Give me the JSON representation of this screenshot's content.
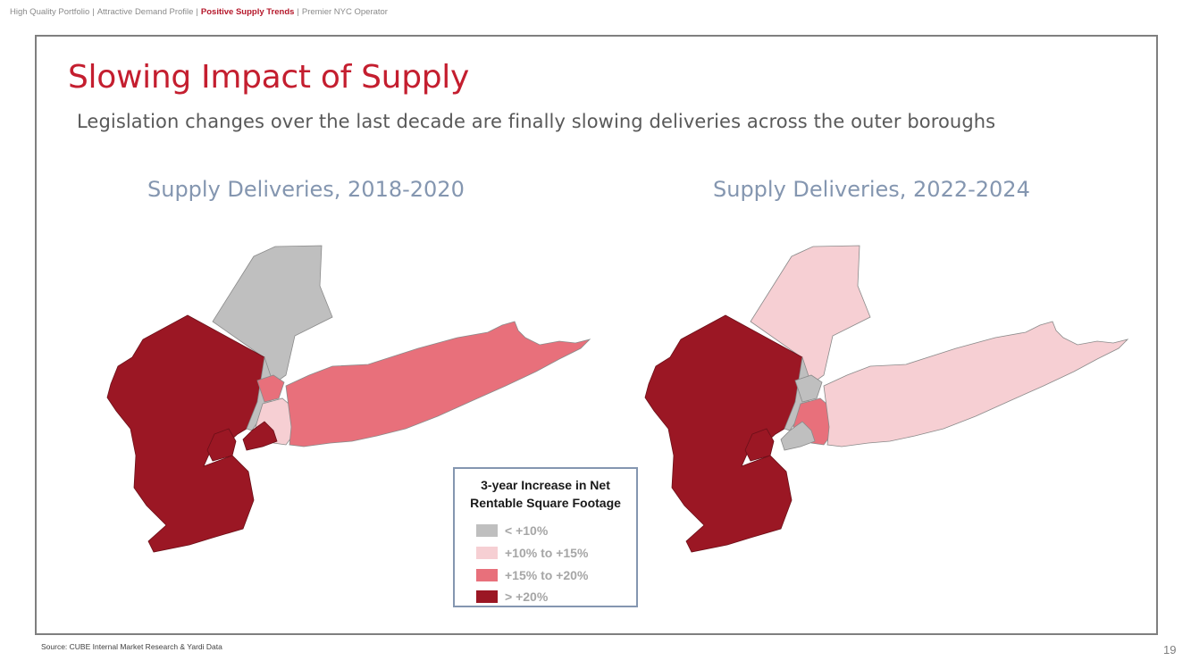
{
  "header": {
    "breadcrumb": [
      {
        "label": "High Quality Portfolio",
        "active": false
      },
      {
        "label": "Attractive Demand Profile",
        "active": false
      },
      {
        "label": "Positive Supply Trends",
        "active": true
      },
      {
        "label": "Premier NYC Operator",
        "active": false
      }
    ],
    "separator": "|"
  },
  "title": "Slowing Impact of Supply",
  "subtitle": "Legislation changes over the last decade are finally slowing deliveries across the outer boroughs",
  "maps": [
    {
      "title": "Supply Deliveries, 2018-2020",
      "regions": {
        "northern-county": "lt10",
        "bronx": "15to20",
        "manhattan": "lt10",
        "queens": "10to15",
        "long-island": "15to20",
        "brooklyn": "gt20",
        "staten-island": "gt20",
        "new-jersey": "gt20"
      }
    },
    {
      "title": "Supply Deliveries, 2022-2024",
      "regions": {
        "northern-county": "10to15",
        "bronx": "lt10",
        "manhattan": "lt10",
        "queens": "15to20",
        "long-island": "10to15",
        "brooklyn": "lt10",
        "staten-island": "gt20",
        "new-jersey": "gt20"
      }
    }
  ],
  "legend": {
    "title": "3-year Increase in Net Rentable Square Footage",
    "items": [
      {
        "key": "lt10",
        "label": "< +10%",
        "color": "#bfbfbf"
      },
      {
        "key": "10to15",
        "label": "+10% to +15%",
        "color": "#f6cfd3"
      },
      {
        "key": "15to20",
        "label": "+15% to +20%",
        "color": "#e8707b"
      },
      {
        "key": "gt20",
        "label": "> +20%",
        "color": "#9b1724"
      }
    ]
  },
  "footer": {
    "source": "Source: CUBE Internal Market Research & Yardi Data",
    "page_number": "19"
  },
  "colors": {
    "accent": "#c41e2f",
    "map_title": "#8496b0",
    "frame": "#7f7f7f",
    "missing_region": "#d9d9d9"
  }
}
